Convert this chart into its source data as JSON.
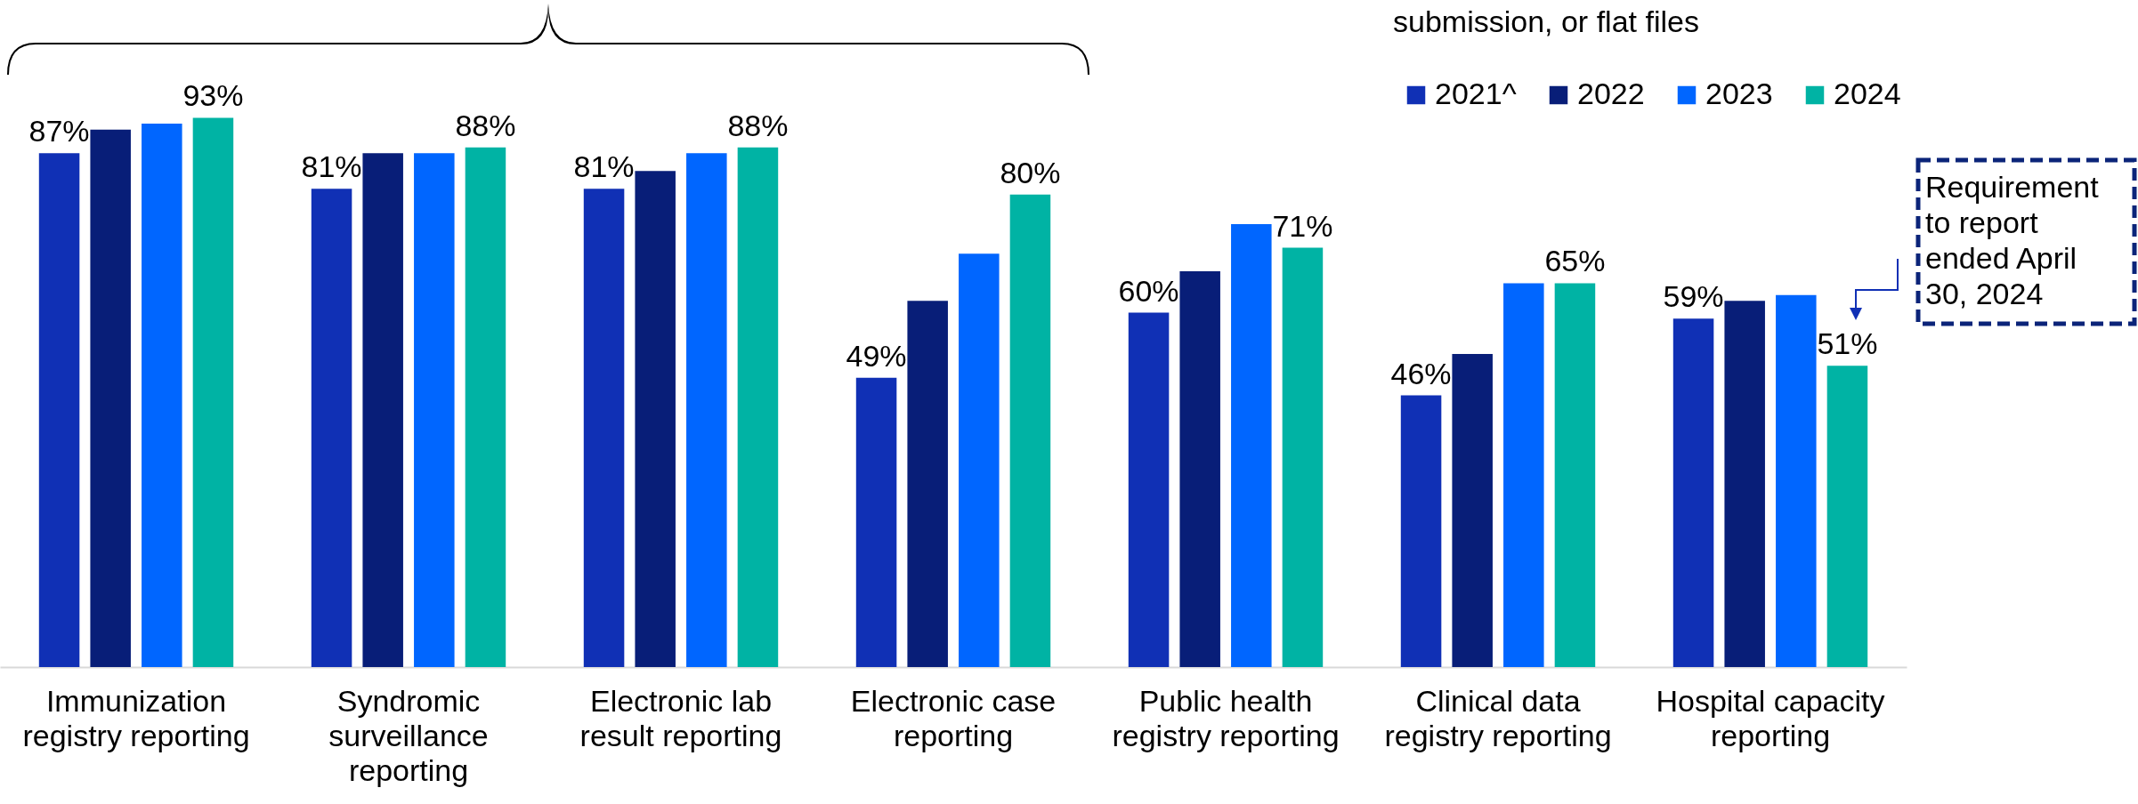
{
  "chart_data": {
    "type": "bar",
    "categories": [
      "Immunization registry reporting",
      "Syndromic surveillance reporting",
      "Electronic lab result reporting",
      "Electronic case reporting",
      "Public health registry reporting",
      "Clinical data registry reporting",
      "Hospital capacity reporting"
    ],
    "series": [
      {
        "name": "2021^",
        "color": "#1030b5",
        "values": [
          87,
          81,
          81,
          49,
          60,
          46,
          59
        ],
        "value_labels": [
          "87%",
          "81%",
          "81%",
          "49%",
          "60%",
          "46%",
          "59%"
        ]
      },
      {
        "name": "2022",
        "color": "#081e78",
        "values": [
          91,
          87,
          84,
          62,
          67,
          53,
          62
        ],
        "value_labels": [
          null,
          null,
          null,
          null,
          null,
          null,
          null
        ]
      },
      {
        "name": "2023",
        "color": "#0066ff",
        "values": [
          92,
          87,
          87,
          70,
          75,
          65,
          63
        ],
        "value_labels": [
          null,
          null,
          null,
          null,
          null,
          null,
          null
        ]
      },
      {
        "name": "2024",
        "color": "#00b3a4",
        "values": [
          93,
          88,
          88,
          80,
          71,
          65,
          51
        ],
        "value_labels": [
          "93%",
          "88%",
          "88%",
          "80%",
          "71%",
          "65%",
          "51%"
        ]
      }
    ],
    "tick_labels": "x",
    "legend": "top right",
    "annotations": [
      "submission, or flat files",
      "Requirement to report ended April 30, 2024"
    ]
  }
}
